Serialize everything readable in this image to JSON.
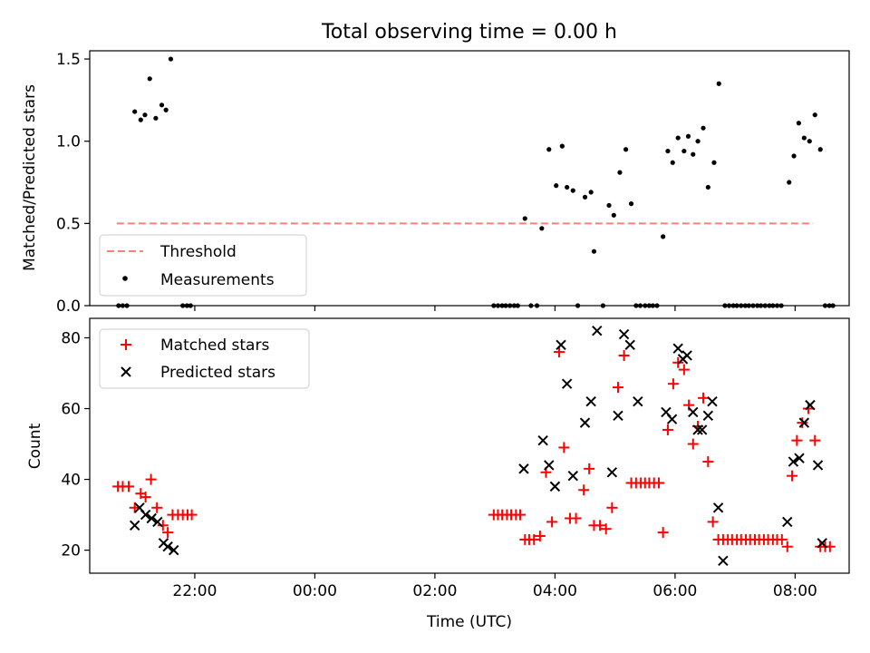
{
  "figure": {
    "title": "Total observing time = 0.00 h",
    "xlabel": "Time (UTC)",
    "xticks": [
      "22:00",
      "00:00",
      "02:00",
      "04:00",
      "06:00",
      "08:00"
    ],
    "xtick_hours": [
      22,
      24,
      26,
      28,
      30,
      32
    ]
  },
  "chart_data": [
    {
      "type": "scatter",
      "panel": "top",
      "ylabel": "Matched/Predicted stars",
      "ylim": [
        0,
        1.55
      ],
      "xlim_hours": [
        20.25,
        32.9
      ],
      "yticks": [
        0.0,
        0.5,
        1.0,
        1.5
      ],
      "ytick_labels": [
        "0.0",
        "0.5",
        "1.0",
        "1.5"
      ],
      "legend": {
        "placement": "lower-left",
        "entries": [
          "Threshold",
          "Measurements"
        ]
      },
      "threshold": {
        "name": "Threshold",
        "value": 0.5,
        "x_range_hours": [
          20.7,
          32.3
        ],
        "color": "#ff7f7f",
        "style": "dashed"
      },
      "series": [
        {
          "name": "Measurements",
          "color": "#000000",
          "marker": "dot",
          "points": [
            [
              20.73,
              0
            ],
            [
              20.8,
              0
            ],
            [
              20.87,
              0
            ],
            [
              21.0,
              1.18
            ],
            [
              21.1,
              1.13
            ],
            [
              21.17,
              1.16
            ],
            [
              21.25,
              1.38
            ],
            [
              21.35,
              1.14
            ],
            [
              21.45,
              1.22
            ],
            [
              21.52,
              1.19
            ],
            [
              21.6,
              1.5
            ],
            [
              21.8,
              0
            ],
            [
              21.87,
              0
            ],
            [
              21.93,
              0
            ],
            [
              26.98,
              0
            ],
            [
              27.05,
              0
            ],
            [
              27.12,
              0
            ],
            [
              27.18,
              0
            ],
            [
              27.25,
              0
            ],
            [
              27.32,
              0
            ],
            [
              27.38,
              0
            ],
            [
              27.5,
              0.53
            ],
            [
              27.6,
              0
            ],
            [
              27.7,
              0
            ],
            [
              27.78,
              0.47
            ],
            [
              27.9,
              0.95
            ],
            [
              28.02,
              0.73
            ],
            [
              28.12,
              0.97
            ],
            [
              28.2,
              0.72
            ],
            [
              28.3,
              0.7
            ],
            [
              28.38,
              0
            ],
            [
              28.5,
              0.66
            ],
            [
              28.6,
              0.69
            ],
            [
              28.65,
              0.33
            ],
            [
              28.8,
              0
            ],
            [
              28.9,
              0.61
            ],
            [
              28.98,
              0.55
            ],
            [
              29.08,
              0.81
            ],
            [
              29.18,
              0.95
            ],
            [
              29.27,
              0.62
            ],
            [
              29.35,
              0
            ],
            [
              29.42,
              0
            ],
            [
              29.5,
              0
            ],
            [
              29.57,
              0
            ],
            [
              29.63,
              0
            ],
            [
              29.7,
              0
            ],
            [
              29.8,
              0.42
            ],
            [
              29.88,
              0.94
            ],
            [
              29.96,
              0.87
            ],
            [
              30.05,
              1.02
            ],
            [
              30.15,
              0.94
            ],
            [
              30.22,
              1.03
            ],
            [
              30.3,
              0.92
            ],
            [
              30.38,
              1.0
            ],
            [
              30.47,
              1.08
            ],
            [
              30.55,
              0.72
            ],
            [
              30.65,
              0.87
            ],
            [
              30.73,
              1.35
            ],
            [
              30.83,
              0
            ],
            [
              30.9,
              0
            ],
            [
              30.97,
              0
            ],
            [
              31.03,
              0
            ],
            [
              31.1,
              0
            ],
            [
              31.17,
              0
            ],
            [
              31.23,
              0
            ],
            [
              31.3,
              0
            ],
            [
              31.37,
              0
            ],
            [
              31.43,
              0
            ],
            [
              31.5,
              0
            ],
            [
              31.57,
              0
            ],
            [
              31.63,
              0
            ],
            [
              31.7,
              0
            ],
            [
              31.77,
              0
            ],
            [
              31.9,
              0.75
            ],
            [
              31.98,
              0.91
            ],
            [
              32.06,
              1.11
            ],
            [
              32.15,
              1.02
            ],
            [
              32.24,
              1.0
            ],
            [
              32.33,
              1.16
            ],
            [
              32.42,
              0.95
            ],
            [
              32.5,
              0
            ],
            [
              32.57,
              0
            ],
            [
              32.63,
              0
            ]
          ]
        }
      ]
    },
    {
      "type": "scatter",
      "panel": "bottom",
      "ylabel": "Count",
      "ylim": [
        13.5,
        85.5
      ],
      "xlim_hours": [
        20.25,
        32.9
      ],
      "yticks": [
        20,
        40,
        60,
        80
      ],
      "ytick_labels": [
        "20",
        "40",
        "60",
        "80"
      ],
      "legend": {
        "placement": "upper-left",
        "entries": [
          "Matched stars",
          "Predicted stars"
        ]
      },
      "series": [
        {
          "name": "Matched stars",
          "color": "#ff0000",
          "marker": "plus",
          "points": [
            [
              20.72,
              38
            ],
            [
              20.8,
              38
            ],
            [
              20.9,
              38
            ],
            [
              21.0,
              32
            ],
            [
              21.1,
              36
            ],
            [
              21.18,
              35
            ],
            [
              21.27,
              40
            ],
            [
              21.37,
              32
            ],
            [
              21.47,
              27
            ],
            [
              21.55,
              25
            ],
            [
              21.63,
              30
            ],
            [
              21.72,
              30
            ],
            [
              21.8,
              30
            ],
            [
              21.88,
              30
            ],
            [
              21.95,
              30
            ],
            [
              26.98,
              30
            ],
            [
              27.05,
              30
            ],
            [
              27.12,
              30
            ],
            [
              27.2,
              30
            ],
            [
              27.27,
              30
            ],
            [
              27.35,
              30
            ],
            [
              27.42,
              30
            ],
            [
              27.5,
              23
            ],
            [
              27.57,
              23
            ],
            [
              27.65,
              23
            ],
            [
              27.75,
              24
            ],
            [
              27.85,
              42
            ],
            [
              27.95,
              28
            ],
            [
              28.07,
              76
            ],
            [
              28.15,
              49
            ],
            [
              28.25,
              29
            ],
            [
              28.35,
              29
            ],
            [
              28.48,
              37
            ],
            [
              28.57,
              43
            ],
            [
              28.65,
              27
            ],
            [
              28.75,
              27
            ],
            [
              28.85,
              26
            ],
            [
              28.95,
              32
            ],
            [
              29.05,
              66
            ],
            [
              29.15,
              75
            ],
            [
              29.27,
              39
            ],
            [
              29.35,
              39
            ],
            [
              29.43,
              39
            ],
            [
              29.5,
              39
            ],
            [
              29.57,
              39
            ],
            [
              29.65,
              39
            ],
            [
              29.73,
              39
            ],
            [
              29.8,
              25
            ],
            [
              29.88,
              54
            ],
            [
              29.97,
              67
            ],
            [
              30.05,
              73
            ],
            [
              30.15,
              71
            ],
            [
              30.23,
              61
            ],
            [
              30.3,
              50
            ],
            [
              30.38,
              55
            ],
            [
              30.47,
              63
            ],
            [
              30.55,
              45
            ],
            [
              30.63,
              28
            ],
            [
              30.72,
              23
            ],
            [
              30.8,
              23
            ],
            [
              30.88,
              23
            ],
            [
              30.95,
              23
            ],
            [
              31.03,
              23
            ],
            [
              31.1,
              23
            ],
            [
              31.18,
              23
            ],
            [
              31.25,
              23
            ],
            [
              31.33,
              23
            ],
            [
              31.4,
              23
            ],
            [
              31.48,
              23
            ],
            [
              31.55,
              23
            ],
            [
              31.63,
              23
            ],
            [
              31.7,
              23
            ],
            [
              31.78,
              23
            ],
            [
              31.87,
              21
            ],
            [
              31.95,
              41
            ],
            [
              32.03,
              51
            ],
            [
              32.12,
              56
            ],
            [
              32.22,
              60
            ],
            [
              32.33,
              51
            ],
            [
              32.42,
              21
            ],
            [
              32.5,
              21
            ],
            [
              32.58,
              21
            ]
          ]
        },
        {
          "name": "Predicted stars",
          "color": "#000000",
          "marker": "x",
          "points": [
            [
              21.0,
              27
            ],
            [
              21.08,
              32
            ],
            [
              21.18,
              30
            ],
            [
              21.28,
              29
            ],
            [
              21.38,
              28
            ],
            [
              21.48,
              22
            ],
            [
              21.55,
              21
            ],
            [
              21.65,
              20
            ],
            [
              27.48,
              43
            ],
            [
              27.8,
              51
            ],
            [
              27.9,
              44
            ],
            [
              28.0,
              38
            ],
            [
              28.1,
              78
            ],
            [
              28.2,
              67
            ],
            [
              28.3,
              41
            ],
            [
              28.5,
              56
            ],
            [
              28.6,
              62
            ],
            [
              28.7,
              82
            ],
            [
              28.95,
              42
            ],
            [
              29.05,
              58
            ],
            [
              29.15,
              81
            ],
            [
              29.25,
              78
            ],
            [
              29.38,
              62
            ],
            [
              29.85,
              59
            ],
            [
              29.95,
              57
            ],
            [
              30.05,
              77
            ],
            [
              30.13,
              74
            ],
            [
              30.2,
              75
            ],
            [
              30.3,
              59
            ],
            [
              30.38,
              54
            ],
            [
              30.45,
              54
            ],
            [
              30.55,
              58
            ],
            [
              30.62,
              62
            ],
            [
              30.72,
              32
            ],
            [
              30.8,
              17
            ],
            [
              31.87,
              28
            ],
            [
              31.97,
              45
            ],
            [
              32.07,
              46
            ],
            [
              32.15,
              56
            ],
            [
              32.25,
              61
            ],
            [
              32.38,
              44
            ],
            [
              32.45,
              22
            ]
          ]
        }
      ]
    }
  ]
}
